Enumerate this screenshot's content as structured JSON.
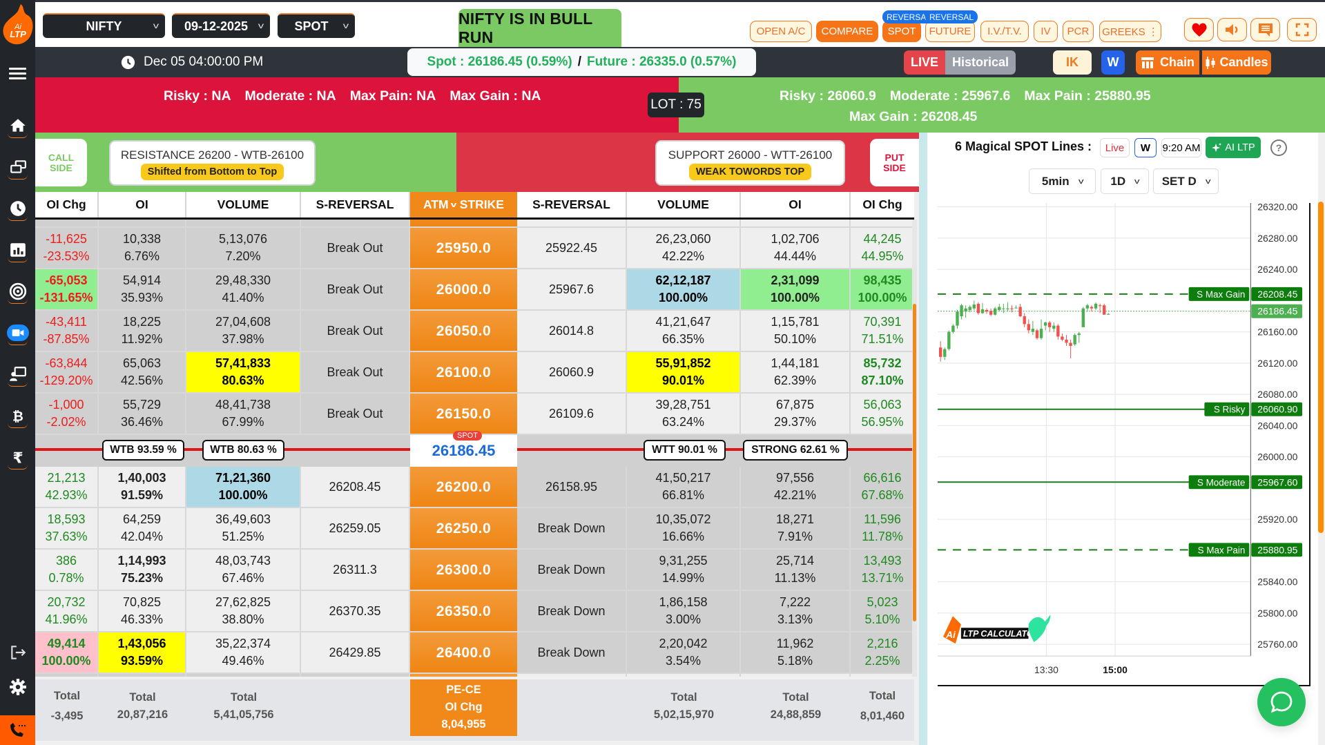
{
  "topbar": {
    "symbol": "NIFTY",
    "expiry": "09-12-2025",
    "mode": "SPOT",
    "status_banner": "NIFTY IS IN BULL RUN",
    "buttons": [
      {
        "label": "OPEN A/C",
        "filled": false
      },
      {
        "label": "COMPARE",
        "filled": true
      },
      {
        "label": "SPOT",
        "filled": true,
        "badge": "REVERSAL"
      },
      {
        "label": "FUTURE",
        "filled": false,
        "badge": "REVERSAL"
      },
      {
        "label": "I.V./T.V.",
        "filled": false
      },
      {
        "label": "IV",
        "filled": false
      },
      {
        "label": "PCR",
        "filled": false
      },
      {
        "label": "GREEKS ⋮",
        "filled": false
      }
    ],
    "icons": [
      "heart-icon",
      "speaker-icon",
      "chat-icon",
      "fullscreen-icon"
    ]
  },
  "infobar": {
    "datetime": "Dec 05 04:00:00 PM",
    "spot": "Spot : 26186.45 (0.59%)",
    "separator": "/",
    "future": "Future : 26335.0 (0.57%)",
    "live": "LIVE",
    "historical": "Historical",
    "ik": "IK",
    "w": "W",
    "chain": "Chain",
    "candles": "Candles"
  },
  "levels": {
    "call": {
      "risky": "Risky : NA",
      "moderate": "Moderate : NA",
      "max_pain": "Max Pain: NA",
      "max_gain": "Max Gain : NA"
    },
    "lot": "LOT : 75",
    "put": {
      "risky": "Risky : 26060.9",
      "moderate": "Moderate : 25967.6",
      "max_pain": "Max Pain : 25880.95",
      "max_gain": "Max Gain : 26208.45"
    }
  },
  "sides": {
    "call_label_1": "CALL",
    "call_label_2": "SIDE",
    "put_label_1": "PUT",
    "put_label_2": "SIDE",
    "resistance": "RESISTANCE 26200 - WTB-26100",
    "resistance_badge": "Shifted from Bottom to Top",
    "support": "SUPPORT 26000 - WTT-26100",
    "support_badge": "WEAK TOWORDS TOP"
  },
  "table": {
    "headers": {
      "oi_chg_call": "OI Chg",
      "oi_call": "OI",
      "volume_call": "VOLUME",
      "srev_call": "S-REVERSAL",
      "atm": "ATM",
      "strike": "STRIKE",
      "srev_put": "S-REVERSAL",
      "volume_put": "VOLUME",
      "oi_put": "OI",
      "oi_chg_put": "OI Chg"
    },
    "rows_above": [
      {
        "strike": "25950.0",
        "c_oichg": "-11,625",
        "c_oichg_pct": "-23.53%",
        "c_oi": "10,338",
        "c_oi_pct": "6.76%",
        "c_vol": "5,13,076",
        "c_vol_pct": "7.20%",
        "c_srev": "Break Out",
        "p_srev": "25922.45",
        "p_vol": "26,23,060",
        "p_vol_pct": "42.22%",
        "p_oi": "1,02,706",
        "p_oi_pct": "44.44%",
        "p_oichg": "44,245",
        "p_oichg_pct": "44.95%"
      },
      {
        "strike": "26000.0",
        "c_oichg": "-65,053",
        "c_oichg_pct": "-131.65%",
        "c_oi": "54,914",
        "c_oi_pct": "35.93%",
        "c_vol": "29,48,330",
        "c_vol_pct": "41.40%",
        "c_srev": "Break Out",
        "p_srev": "25967.6",
        "p_vol": "62,12,187",
        "p_vol_pct": "100.00%",
        "p_oi": "2,31,099",
        "p_oi_pct": "100.00%",
        "p_oichg": "98,435",
        "p_oichg_pct": "100.00%"
      },
      {
        "strike": "26050.0",
        "c_oichg": "-43,411",
        "c_oichg_pct": "-87.85%",
        "c_oi": "18,225",
        "c_oi_pct": "11.92%",
        "c_vol": "27,04,608",
        "c_vol_pct": "37.98%",
        "c_srev": "Break Out",
        "p_srev": "26014.8",
        "p_vol": "41,21,647",
        "p_vol_pct": "66.35%",
        "p_oi": "1,15,781",
        "p_oi_pct": "50.10%",
        "p_oichg": "70,391",
        "p_oichg_pct": "71.51%"
      },
      {
        "strike": "26100.0",
        "c_oichg": "-63,844",
        "c_oichg_pct": "-129.20%",
        "c_oi": "65,063",
        "c_oi_pct": "42.56%",
        "c_vol": "57,41,833",
        "c_vol_pct": "80.63%",
        "c_srev": "Break Out",
        "p_srev": "26060.9",
        "p_vol": "55,91,852",
        "p_vol_pct": "90.01%",
        "p_oi": "1,44,181",
        "p_oi_pct": "62.39%",
        "p_oichg": "85,732",
        "p_oichg_pct": "87.10%"
      },
      {
        "strike": "26150.0",
        "c_oichg": "-1,000",
        "c_oichg_pct": "-2.02%",
        "c_oi": "55,729",
        "c_oi_pct": "36.46%",
        "c_vol": "48,41,738",
        "c_vol_pct": "67.99%",
        "c_srev": "Break Out",
        "p_srev": "26109.6",
        "p_vol": "39,28,751",
        "p_vol_pct": "63.24%",
        "p_oi": "67,875",
        "p_oi_pct": "29.37%",
        "p_oichg": "56,063",
        "p_oichg_pct": "56.95%"
      }
    ],
    "spot_row": {
      "badge": "SPOT",
      "value": "26186.45",
      "tag_c_oi": "WTB 93.59 %",
      "tag_c_vol": "WTB 80.63 %",
      "tag_p_vol": "WTT 90.01 %",
      "tag_p_oi": "STRONG 62.61 %"
    },
    "rows_below": [
      {
        "strike": "26200.0",
        "c_oichg": "21,213",
        "c_oichg_pct": "42.93%",
        "c_oi": "1,40,003",
        "c_oi_pct": "91.59%",
        "c_vol": "71,21,360",
        "c_vol_pct": "100.00%",
        "c_srev": "26208.45",
        "p_srev": "26158.95",
        "p_vol": "41,50,217",
        "p_vol_pct": "66.81%",
        "p_oi": "97,556",
        "p_oi_pct": "42.21%",
        "p_oichg": "66,616",
        "p_oichg_pct": "67.68%"
      },
      {
        "strike": "26250.0",
        "c_oichg": "18,593",
        "c_oichg_pct": "37.63%",
        "c_oi": "64,259",
        "c_oi_pct": "42.04%",
        "c_vol": "36,49,603",
        "c_vol_pct": "51.25%",
        "c_srev": "26259.05",
        "p_srev": "Break Down",
        "p_vol": "10,35,072",
        "p_vol_pct": "16.66%",
        "p_oi": "18,271",
        "p_oi_pct": "7.91%",
        "p_oichg": "11,596",
        "p_oichg_pct": "11.78%"
      },
      {
        "strike": "26300.0",
        "c_oichg": "386",
        "c_oichg_pct": "0.78%",
        "c_oi": "1,14,993",
        "c_oi_pct": "75.23%",
        "c_vol": "48,03,743",
        "c_vol_pct": "67.46%",
        "c_srev": "26311.3",
        "p_srev": "Break Down",
        "p_vol": "9,31,255",
        "p_vol_pct": "14.99%",
        "p_oi": "25,714",
        "p_oi_pct": "11.13%",
        "p_oichg": "13,493",
        "p_oichg_pct": "13.71%"
      },
      {
        "strike": "26350.0",
        "c_oichg": "20,732",
        "c_oichg_pct": "41.96%",
        "c_oi": "70,825",
        "c_oi_pct": "46.33%",
        "c_vol": "27,62,825",
        "c_vol_pct": "38.80%",
        "c_srev": "26370.35",
        "p_srev": "Break Down",
        "p_vol": "1,86,158",
        "p_vol_pct": "3.00%",
        "p_oi": "7,222",
        "p_oi_pct": "3.13%",
        "p_oichg": "5,023",
        "p_oichg_pct": "5.10%"
      },
      {
        "strike": "26400.0",
        "c_oichg": "49,414",
        "c_oichg_pct": "100.00%",
        "c_oi": "1,43,056",
        "c_oi_pct": "93.59%",
        "c_vol": "35,22,374",
        "c_vol_pct": "49.46%",
        "c_srev": "26429.85",
        "p_srev": "Break Down",
        "p_vol": "2,20,042",
        "p_vol_pct": "3.54%",
        "p_oi": "11,962",
        "p_oi_pct": "5.18%",
        "p_oichg": "2,216",
        "p_oichg_pct": "2.25%"
      }
    ],
    "totals": {
      "label": "Total",
      "c_oichg": "-3,495",
      "c_oi": "20,87,216",
      "c_vol": "5,41,05,756",
      "pece_1": "PE-CE",
      "pece_2": "OI Chg",
      "pece_val": "8,04,955",
      "p_vol": "5,02,15,970",
      "p_oi": "24,88,859",
      "p_oichg": "8,01,460"
    }
  },
  "chart_panel": {
    "title": "6 Magical SPOT Lines :",
    "live": "Live",
    "w": "W",
    "time": "9:20 AM",
    "ai_ltp": "AI LTP",
    "help": "?",
    "interval": "5min",
    "range": "1D",
    "set": "SET D",
    "watermark": "LTP CALCULATOR"
  },
  "chart_data": {
    "type": "candlestick",
    "title": "6 Magical SPOT Lines",
    "x_ticks": [
      "13:30",
      "15:00"
    ],
    "y_ticks": [
      26320.0,
      26280.0,
      26240.0,
      26160.0,
      26120.0,
      26080.0,
      26040.0,
      26000.0,
      25920.0,
      25840.0,
      25800.0,
      25760.0
    ],
    "ylim": [
      25740,
      26330
    ],
    "last_price": 26186.45,
    "lines": [
      {
        "name": "S Max Gain",
        "value": 26208.45,
        "style": "dashed"
      },
      {
        "name": "S Risky",
        "value": 26060.9,
        "style": "solid"
      },
      {
        "name": "S Moderate",
        "value": 25967.6,
        "style": "solid"
      },
      {
        "name": "S Max Pain",
        "value": 25880.95,
        "style": "dashed"
      }
    ],
    "candles": [
      [
        26140,
        26148,
        26122,
        26128
      ],
      [
        26128,
        26140,
        26124,
        26138
      ],
      [
        26138,
        26162,
        26136,
        26160
      ],
      [
        26160,
        26170,
        26158,
        26168
      ],
      [
        26168,
        26188,
        26164,
        26186
      ],
      [
        26180,
        26196,
        26176,
        26194
      ],
      [
        26186,
        26194,
        26178,
        26190
      ],
      [
        26188,
        26194,
        26185,
        26192
      ],
      [
        26190,
        26200,
        26188,
        26195
      ],
      [
        26196,
        26198,
        26182,
        26184
      ],
      [
        26184,
        26197,
        26183,
        26189
      ],
      [
        26188,
        26190,
        26183,
        26186
      ],
      [
        26187,
        26190,
        26180,
        26182
      ],
      [
        26182,
        26192,
        26181,
        26190
      ],
      [
        26188,
        26196,
        26186,
        26192
      ],
      [
        26190,
        26196,
        26184,
        26190
      ],
      [
        26189,
        26198,
        26186,
        26190
      ],
      [
        26190,
        26194,
        26185,
        26189
      ],
      [
        26191,
        26194,
        26190,
        26191
      ],
      [
        26192,
        26196,
        26179,
        26180
      ],
      [
        26180,
        26184,
        26166,
        26170
      ],
      [
        26170,
        26176,
        26158,
        26162
      ],
      [
        26160,
        26174,
        26156,
        26164
      ],
      [
        26162,
        26164,
        26150,
        26152
      ],
      [
        26152,
        26176,
        26150,
        26164
      ],
      [
        26168,
        26173,
        26162,
        26172
      ],
      [
        26172,
        26174,
        26160,
        26166
      ],
      [
        26164,
        26172,
        26160,
        26168
      ],
      [
        26168,
        26170,
        26150,
        26154
      ],
      [
        26154,
        26158,
        26148,
        26150
      ],
      [
        26150,
        26156,
        26142,
        26146
      ],
      [
        26146,
        26150,
        26126,
        26142
      ],
      [
        26144,
        26158,
        26142,
        26156
      ],
      [
        26156,
        26160,
        26146,
        26158
      ],
      [
        26166,
        26192,
        26166,
        26190
      ],
      [
        26190,
        26196,
        26186,
        26194
      ],
      [
        26192,
        26194,
        26186,
        26190
      ],
      [
        26190,
        26198,
        26188,
        26196
      ],
      [
        26194,
        26196,
        26184,
        26193
      ],
      [
        26194,
        26196,
        26182,
        26182
      ],
      [
        26182,
        26184,
        26182,
        26183
      ]
    ]
  },
  "sidebar": {
    "items": [
      "home-icon",
      "copy-icon",
      "clock-icon",
      "bar-chart-icon",
      "target-icon",
      "video-icon",
      "presenter-icon",
      "bitcoin-icon",
      "rupee-icon"
    ],
    "bottom": [
      "logout-icon",
      "settings-icon"
    ]
  }
}
